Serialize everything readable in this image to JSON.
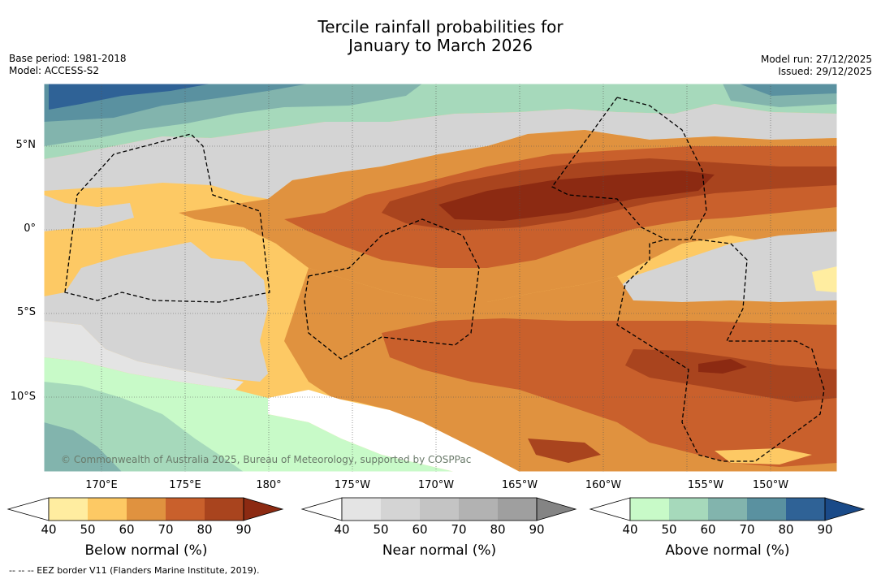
{
  "title_line1": "Tercile rainfall probabilities for",
  "title_line2": "January to March 2026",
  "base_period": "Base period: 1981-2018",
  "model": "Model: ACCESS-S2",
  "model_run": "Model run: 27/12/2025",
  "issued": "Issued: 29/12/2025",
  "copyright": "© Commonwealth of Australia 2025, Bureau of Meteorology, supported by COSPPac",
  "eez_legend": "-- -- -- EEZ border V11 (Flanders Marine Institute, 2019).",
  "lat_ticks": [
    "5°N",
    "0°",
    "5°S",
    "10°S"
  ],
  "lon_ticks": [
    "170°E",
    "175°E",
    "180°",
    "175°W",
    "170°W",
    "165°W",
    "160°W",
    "155°W",
    "150°W"
  ],
  "colorbars": {
    "below": {
      "label": "Below normal (%)",
      "ticks": [
        "40",
        "50",
        "60",
        "70",
        "80",
        "90"
      ],
      "colors": [
        "#ffffff",
        "#ffeda0",
        "#fdc964",
        "#e0923f",
        "#c9602c",
        "#a9441e",
        "#8c2a12"
      ]
    },
    "near": {
      "label": "Near normal (%)",
      "ticks": [
        "40",
        "50",
        "60",
        "70",
        "80",
        "90"
      ],
      "colors": [
        "#ffffff",
        "#e4e4e4",
        "#d4d4d4",
        "#c4c4c4",
        "#b2b2b2",
        "#9f9f9f",
        "#848484"
      ]
    },
    "above": {
      "label": "Above normal (%)",
      "ticks": [
        "40",
        "50",
        "60",
        "70",
        "80",
        "90"
      ],
      "colors": [
        "#ffffff",
        "#c8fac8",
        "#a6d9bb",
        "#82b4ad",
        "#5a91a0",
        "#2f6296",
        "#1a4a88"
      ]
    }
  }
}
